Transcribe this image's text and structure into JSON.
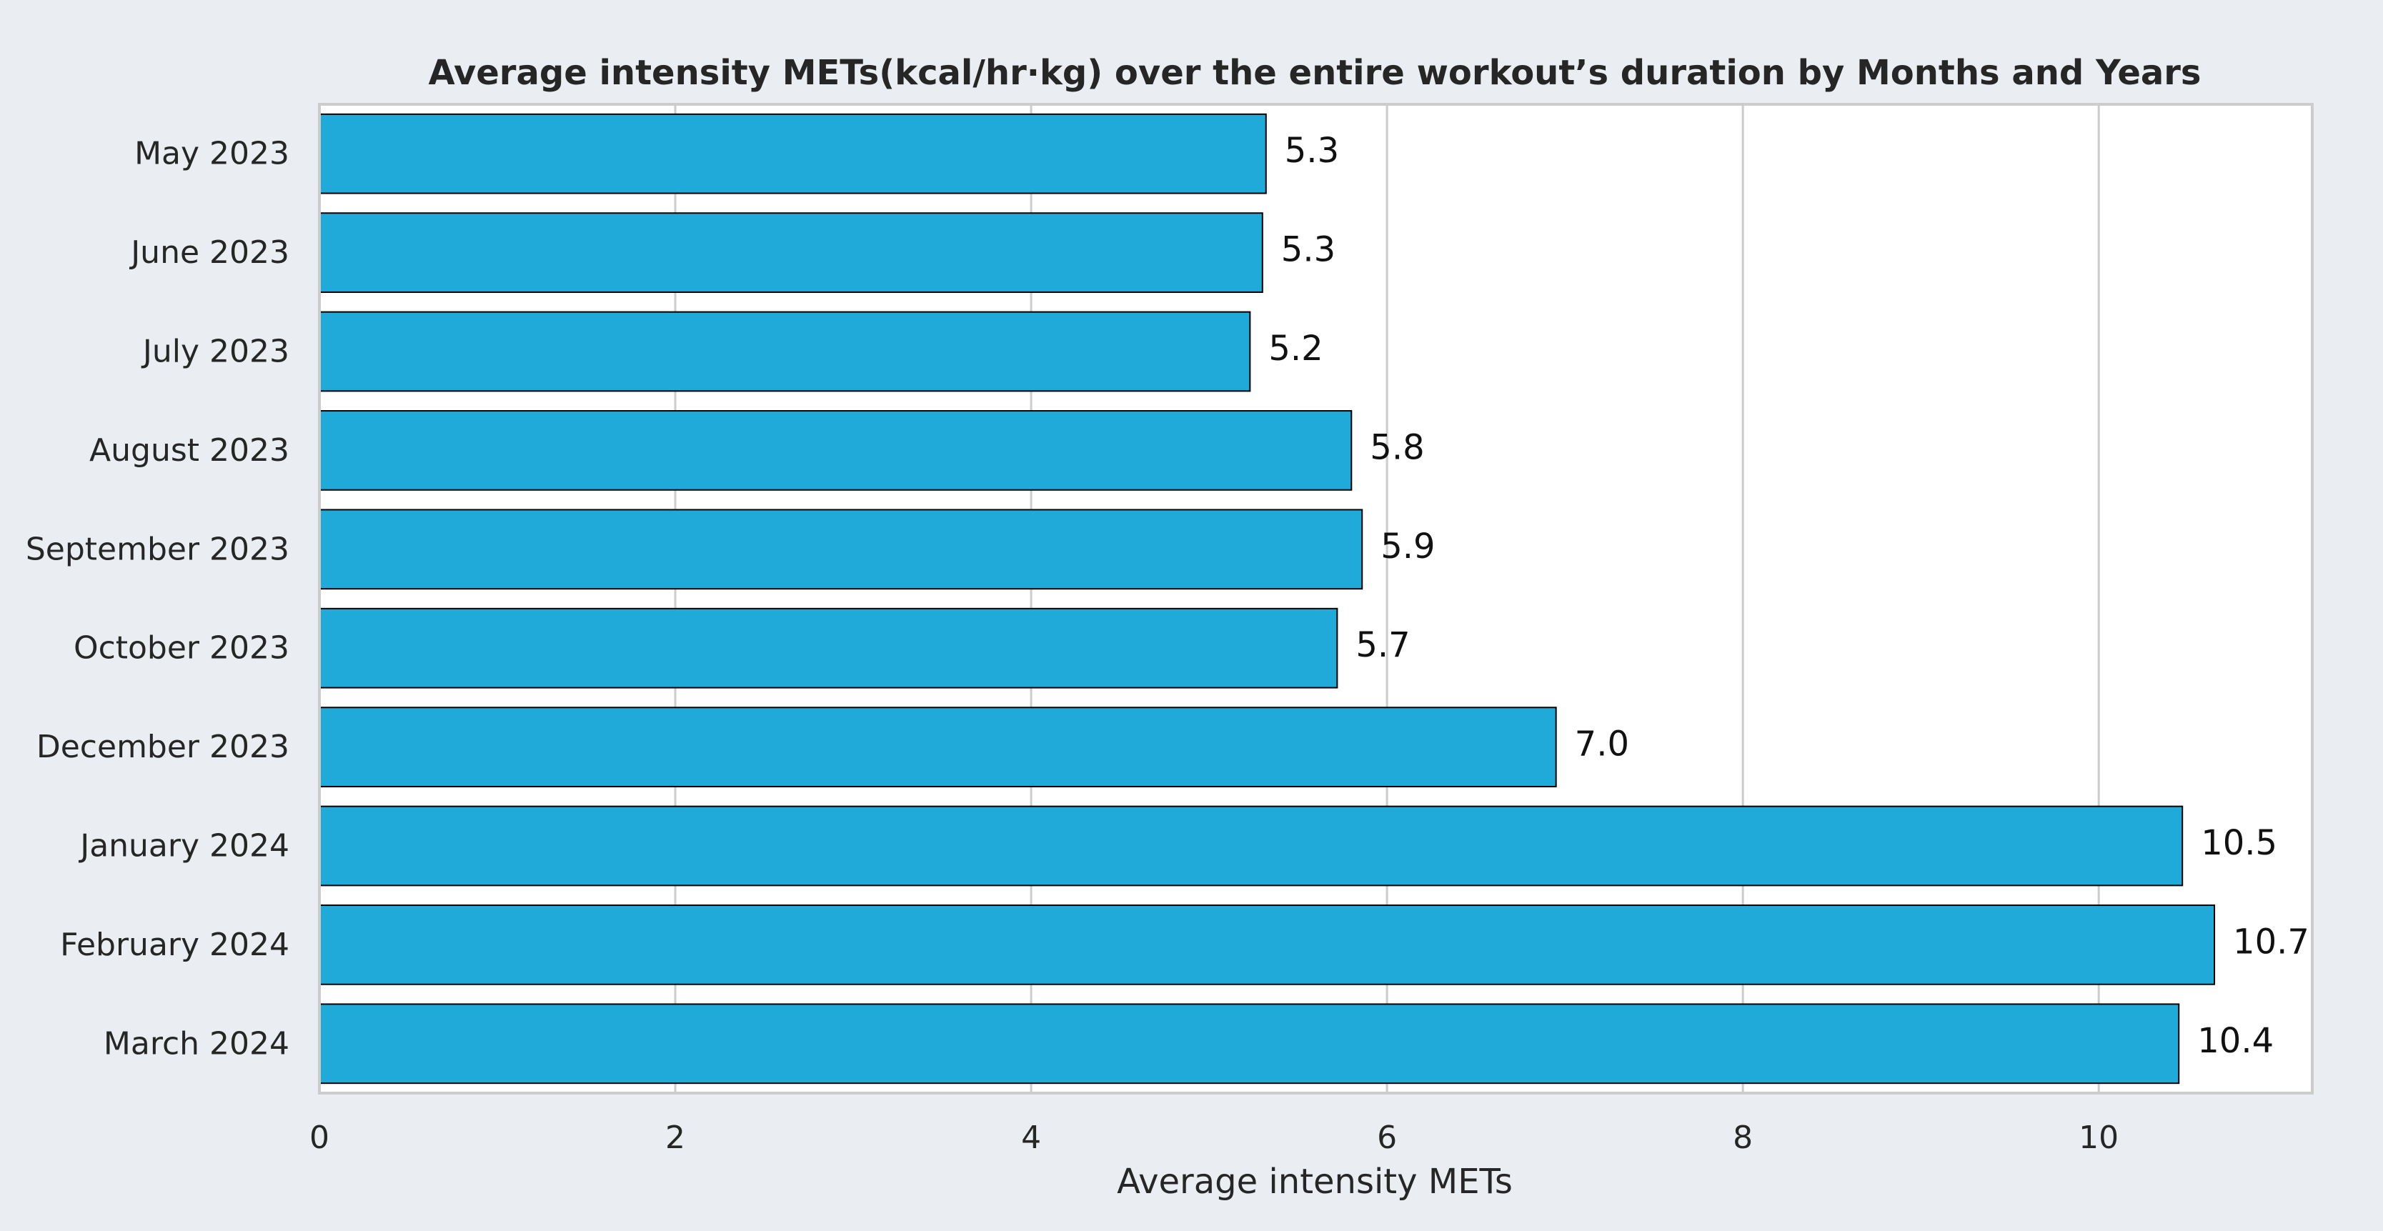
{
  "chart_data": {
    "type": "bar",
    "orientation": "horizontal",
    "title": "Average intensity METs(kcal/hr·kg) over the entire workout’s duration by Months and Years",
    "xlabel": "Average intensity METs",
    "ylabel": "",
    "categories": [
      "May 2023",
      "June 2023",
      "July 2023",
      "August 2023",
      "September 2023",
      "October 2023",
      "December 2023",
      "January 2024",
      "February 2024",
      "March 2024"
    ],
    "values": [
      5.32,
      5.3,
      5.23,
      5.8,
      5.86,
      5.72,
      6.95,
      10.47,
      10.65,
      10.45
    ],
    "data_labels": [
      "5.3",
      "5.3",
      "5.2",
      "5.8",
      "5.9",
      "5.7",
      "7.0",
      "10.5",
      "10.7",
      "10.4"
    ],
    "xlim": [
      0,
      11.2
    ],
    "xticks": [
      0,
      2,
      4,
      6,
      8,
      10
    ],
    "xtick_labels": [
      "0",
      "2",
      "4",
      "6",
      "8",
      "10"
    ],
    "grid": "vertical",
    "colors": {
      "bar": "#1faad9",
      "bar_edge": "#000000",
      "grid": "#cccccc",
      "plot_background": "#ffffff",
      "figure_background": "#eaeef2",
      "text": "#262626"
    }
  }
}
